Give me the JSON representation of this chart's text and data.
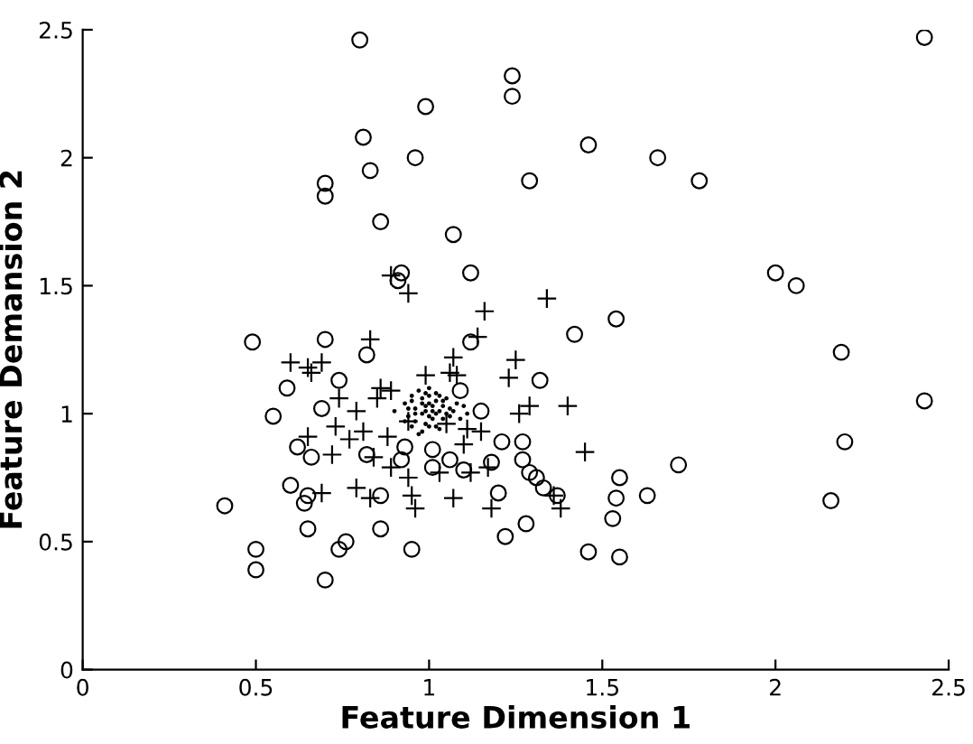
{
  "chart_data": {
    "type": "scatter",
    "xlabel": "Feature Dimension 1",
    "ylabel": "Feature Demansion 2",
    "xlim": [
      0,
      2.5
    ],
    "ylim": [
      0,
      2.5
    ],
    "xticks": [
      0,
      0.5,
      1,
      1.5,
      2,
      2.5
    ],
    "yticks": [
      0,
      0.5,
      1,
      1.5,
      2,
      2.5
    ],
    "grid": false,
    "legend": false,
    "series": [
      {
        "color": "#000000",
        "marker": "circle",
        "x": [
          0.8,
          2.43,
          1.24,
          1.24,
          0.99,
          0.81,
          0.96,
          0.83,
          0.7,
          0.7,
          0.86,
          1.07,
          1.12,
          0.92,
          0.91,
          1.46,
          1.66,
          1.78,
          1.29,
          2.0,
          2.06,
          2.19,
          2.2,
          2.16,
          2.43,
          1.32,
          1.42,
          1.54,
          1.21,
          1.27,
          1.27,
          1.29,
          1.31,
          1.33,
          1.37,
          1.2,
          1.28,
          1.22,
          1.46,
          1.55,
          1.53,
          1.55,
          1.54,
          1.63,
          1.72,
          0.49,
          0.7,
          0.82,
          0.59,
          0.74,
          0.55,
          0.69,
          0.62,
          0.66,
          0.82,
          0.6,
          0.65,
          0.64,
          0.41,
          0.86,
          0.65,
          0.86,
          0.5,
          0.5,
          0.76,
          0.74,
          0.7,
          0.95,
          0.93,
          0.92,
          1.01,
          1.01,
          1.06,
          1.09,
          1.1,
          1.15,
          1.12,
          1.18
        ],
        "values": [
          2.46,
          2.47,
          2.32,
          2.24,
          2.2,
          2.08,
          2.0,
          1.95,
          1.9,
          1.85,
          1.75,
          1.7,
          1.55,
          1.55,
          1.52,
          2.05,
          2.0,
          1.91,
          1.91,
          1.55,
          1.5,
          1.24,
          0.89,
          0.66,
          1.05,
          1.13,
          1.31,
          1.37,
          0.89,
          0.89,
          0.82,
          0.77,
          0.75,
          0.71,
          0.68,
          0.69,
          0.57,
          0.52,
          0.46,
          0.44,
          0.59,
          0.75,
          0.67,
          0.68,
          0.8,
          1.28,
          1.29,
          1.23,
          1.1,
          1.13,
          0.99,
          1.02,
          0.87,
          0.83,
          0.84,
          0.72,
          0.68,
          0.65,
          0.64,
          0.68,
          0.55,
          0.55,
          0.47,
          0.39,
          0.5,
          0.47,
          0.35,
          0.47,
          0.87,
          0.82,
          0.86,
          0.79,
          0.82,
          1.09,
          0.78,
          1.01,
          1.28,
          0.81
        ]
      },
      {
        "color": "#000000",
        "marker": "cross",
        "x": [
          0.6,
          0.65,
          0.66,
          0.69,
          0.83,
          1.14,
          1.07,
          1.06,
          1.08,
          1.23,
          0.99,
          0.74,
          0.86,
          0.89,
          0.85,
          0.79,
          0.65,
          0.73,
          0.77,
          0.81,
          0.72,
          0.84,
          0.88,
          0.89,
          0.94,
          0.94,
          0.95,
          0.96,
          0.79,
          0.69,
          0.83,
          1.05,
          1.11,
          1.15,
          1.1,
          1.03,
          1.12,
          1.17,
          1.07,
          1.18,
          1.25,
          1.29,
          1.26,
          1.4,
          1.45,
          1.36,
          1.38,
          1.34,
          0.89,
          0.94,
          1.16
        ],
        "values": [
          1.2,
          1.18,
          1.16,
          1.2,
          1.29,
          1.3,
          1.22,
          1.16,
          1.15,
          1.14,
          1.15,
          1.06,
          1.1,
          1.09,
          1.06,
          1.01,
          0.91,
          0.95,
          0.9,
          0.93,
          0.84,
          0.83,
          0.91,
          0.79,
          0.97,
          0.75,
          0.68,
          0.63,
          0.71,
          0.69,
          0.67,
          0.96,
          0.94,
          0.93,
          0.88,
          0.77,
          0.77,
          0.79,
          0.67,
          0.63,
          1.21,
          1.03,
          1.0,
          1.03,
          0.85,
          0.68,
          0.63,
          1.45,
          1.54,
          1.47,
          1.4
        ]
      },
      {
        "color": "#000000",
        "marker": "dot",
        "x": [
          0.9,
          0.93,
          0.94,
          0.95,
          0.96,
          0.97,
          0.98,
          0.99,
          1.0,
          1.01,
          1.02,
          1.03,
          1.04,
          1.05,
          1.06,
          1.08,
          1.1,
          1.11,
          0.94,
          0.96,
          0.98,
          1.0,
          1.02,
          1.04,
          1.06,
          0.95,
          0.97,
          0.99,
          1.01,
          1.03,
          1.05,
          0.96,
          0.98,
          1.0,
          1.02,
          1.04,
          0.97,
          0.99,
          1.01,
          1.03,
          0.98,
          1.0,
          1.02,
          0.95,
          1.07,
          1.09,
          0.93,
          1.0,
          1.03,
          0.99
        ],
        "values": [
          1.01,
          1.04,
          0.99,
          1.05,
          1.02,
          null,
          1.0,
          1.03,
          1.07,
          1.01,
          1.05,
          null,
          1.03,
          1.06,
          1.02,
          1.04,
          1.03,
          1.0,
          1.02,
          0.97,
          1.04,
          0.99,
          1.08,
          0.98,
          0.99,
          0.95,
          1.09,
          0.96,
          1.03,
          1.07,
          1.0,
          1.0,
          0.93,
          1.04,
          0.95,
          1.05,
          0.92,
          1.01,
          0.98,
          1.01,
          1.06,
          0.95,
          1.0,
          1.07,
          1.01,
          0.98,
          0.97,
          1.1,
          0.94,
          1.08
        ]
      }
    ]
  }
}
